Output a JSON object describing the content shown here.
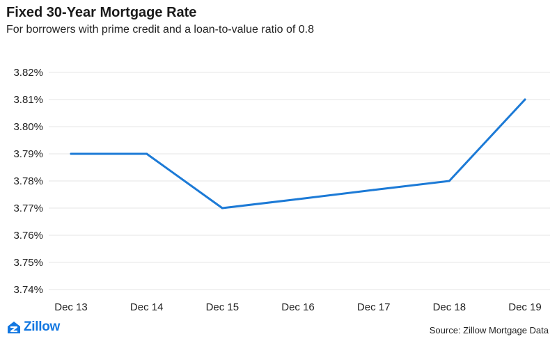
{
  "chart_data": {
    "type": "line",
    "title": "Fixed 30-Year Mortgage Rate",
    "subtitle": "For borrowers with prime credit and a loan-to-value ratio of 0.8",
    "categories": [
      "Dec 13",
      "Dec 14",
      "Dec 15",
      "Dec 16",
      "Dec 17",
      "Dec 18",
      "Dec 19"
    ],
    "series": [
      {
        "values": [
          3.79,
          3.79,
          3.77,
          3.7733,
          3.7767,
          3.78,
          3.81
        ]
      }
    ],
    "yticks": [
      "3.82%",
      "3.81%",
      "3.80%",
      "3.79%",
      "3.78%",
      "3.77%",
      "3.76%",
      "3.75%",
      "3.74%"
    ],
    "ytick_values": [
      3.82,
      3.81,
      3.8,
      3.79,
      3.78,
      3.77,
      3.76,
      3.75,
      3.74
    ],
    "ylim": [
      3.74,
      3.82
    ],
    "xlabel": "",
    "ylabel": "",
    "grid": true,
    "line_color": "#1c7ad6"
  },
  "footer": {
    "brand": "Zillow",
    "brand_color": "#1277e1",
    "source": "Source: Zillow Mortgage Data"
  }
}
